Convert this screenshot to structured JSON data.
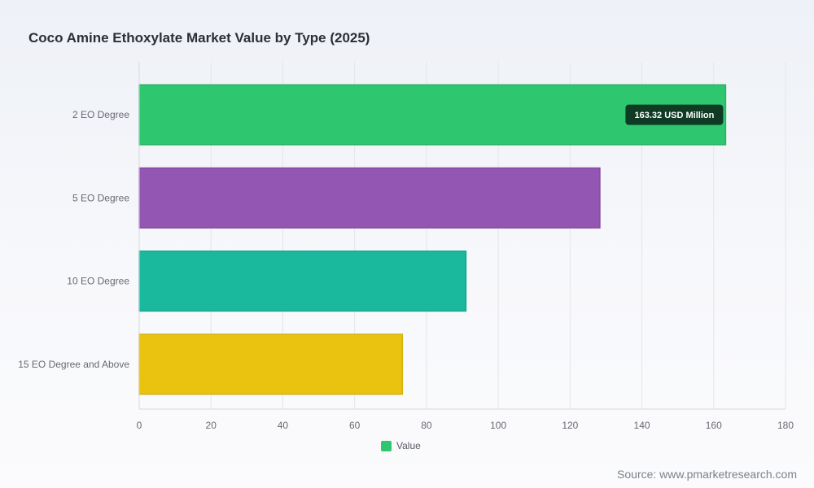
{
  "chart_data": {
    "type": "bar",
    "orientation": "horizontal",
    "title": "Coco Amine Ethoxylate Market Value by Type (2025)",
    "categories": [
      "2 EO Degree",
      "5 EO Degree",
      "10 EO Degree",
      "15 EO Degree and Above"
    ],
    "values": [
      163.32,
      128.3,
      91.0,
      73.3
    ],
    "colors": [
      "#2ec66e",
      "#9356b3",
      "#1ab89c",
      "#eac310"
    ],
    "xlim": [
      0,
      180
    ],
    "xticks": [
      0,
      20,
      40,
      60,
      80,
      100,
      120,
      140,
      160,
      180
    ],
    "grid": "vertical",
    "legend": {
      "position": "bottom",
      "label": "Value",
      "color": "#2ec66e"
    },
    "tooltip": {
      "category": "2 EO Degree",
      "text": "163.32 USD Million"
    }
  },
  "source": "Source: www.pmarketresearch.com"
}
